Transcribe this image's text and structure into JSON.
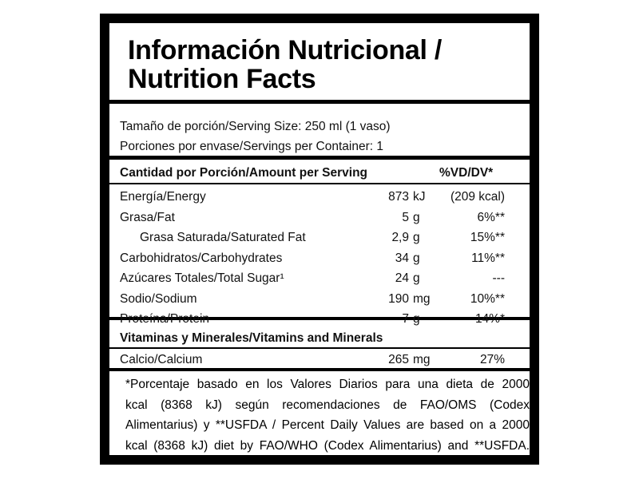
{
  "header": {
    "title_line1": "Información Nutricional /",
    "title_line2": "Nutrition Facts"
  },
  "serving": [
    "Tamaño de porción/Serving Size: 250 ml (1 vaso)",
    "Porciones por envase/Servings per Container: 1"
  ],
  "table_header": {
    "label": "Cantidad por Porción/Amount per Serving",
    "dv": "%VD/DV*"
  },
  "rows": [
    {
      "name": "Energía/Energy",
      "amount": "873",
      "unit": "kJ",
      "dv": "(209 kcal)"
    },
    {
      "name": "Grasa/Fat",
      "amount": "5",
      "unit": "g",
      "dv": "6%**"
    },
    {
      "name": "Grasa Saturada/Saturated Fat",
      "amount": "2,9",
      "unit": "g",
      "dv": "15%**"
    },
    {
      "name": "Carbohidratos/Carbohydrates",
      "amount": "34",
      "unit": "g",
      "dv": "11%**"
    },
    {
      "name": "Azúcares Totales/Total Sugar¹",
      "amount": "24",
      "unit": "g",
      "dv": "---"
    },
    {
      "name": "Sodio/Sodium",
      "amount": "190",
      "unit": "mg",
      "dv": "10%**"
    },
    {
      "name": "Proteína/Protein",
      "amount": "7",
      "unit": "g",
      "dv": "14%*"
    }
  ],
  "vitamins_header": "Vitaminas y Minerales/Vitamins and Minerals",
  "vitamin_rows": [
    {
      "name": "Calcio/Calcium",
      "amount": "265",
      "unit": "mg",
      "dv": "27%"
    }
  ],
  "footnote": [
    "*Porcentaje basado en los Valores Diarios para una dieta de 2000",
    "kcal (8368 kJ) según recomendaciones de FAO/OMS (Codex",
    "Alimentarius) y **USFDA / Percent Daily Values are based on a 2000",
    "kcal (8368 kJ) diet by FAO/WHO (Codex Alimentarius) and **USFDA."
  ]
}
